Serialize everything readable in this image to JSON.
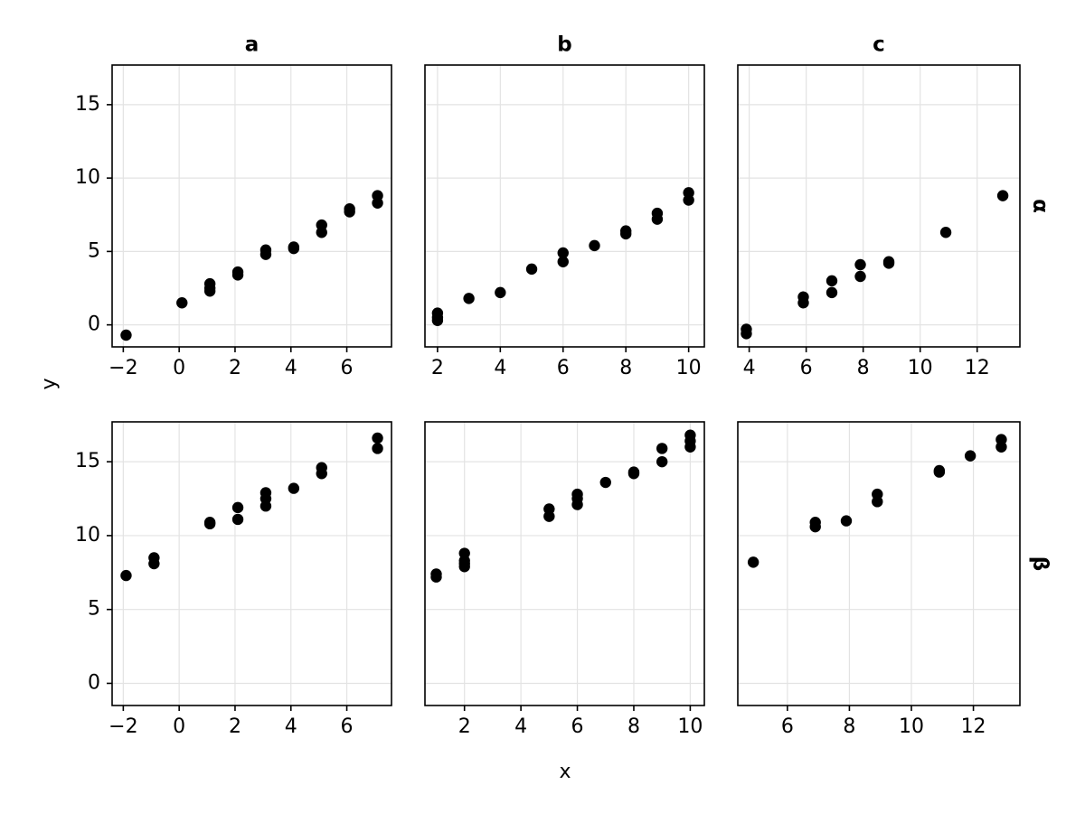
{
  "chart_data": {
    "type": "scatter",
    "xlabel": "x",
    "ylabel": "y",
    "column_titles": [
      "a",
      "b",
      "c"
    ],
    "row_labels": [
      "α",
      "β"
    ],
    "y_ticks": [
      0,
      5,
      10,
      15
    ],
    "ylim": [
      -1.5,
      17.7
    ],
    "grid": true,
    "marker_color": "#000000",
    "panels": [
      {
        "row": "α",
        "column": "a",
        "xlim": [
          -2.4,
          7.6
        ],
        "x_ticks": [
          -2,
          0,
          2,
          4,
          6
        ],
        "x_tick_labels": [
          "−2",
          "0",
          "2",
          "4",
          "6"
        ],
        "points": [
          [
            -1.9,
            -0.7
          ],
          [
            0.1,
            1.5
          ],
          [
            1.1,
            2.3
          ],
          [
            1.1,
            2.5
          ],
          [
            1.1,
            2.8
          ],
          [
            2.1,
            3.4
          ],
          [
            2.1,
            3.6
          ],
          [
            3.1,
            4.8
          ],
          [
            3.1,
            5.1
          ],
          [
            4.1,
            5.2
          ],
          [
            4.1,
            5.3
          ],
          [
            5.1,
            6.3
          ],
          [
            5.1,
            6.8
          ],
          [
            6.1,
            7.7
          ],
          [
            6.1,
            7.9
          ],
          [
            7.1,
            8.3
          ],
          [
            7.1,
            8.8
          ]
        ]
      },
      {
        "row": "α",
        "column": "b",
        "xlim": [
          1.6,
          10.5
        ],
        "x_ticks": [
          2,
          4,
          6,
          8,
          10
        ],
        "x_tick_labels": [
          "2",
          "4",
          "6",
          "8",
          "10"
        ],
        "points": [
          [
            2,
            0.3
          ],
          [
            2,
            0.5
          ],
          [
            2,
            0.8
          ],
          [
            3,
            1.8
          ],
          [
            4,
            2.2
          ],
          [
            5,
            3.8
          ],
          [
            6,
            4.3
          ],
          [
            6,
            4.9
          ],
          [
            7,
            5.4
          ],
          [
            8,
            6.2
          ],
          [
            8,
            6.4
          ],
          [
            9,
            7.2
          ],
          [
            9,
            7.6
          ],
          [
            10,
            8.5
          ],
          [
            10,
            9.0
          ]
        ]
      },
      {
        "row": "α",
        "column": "c",
        "xlim": [
          3.6,
          13.5
        ],
        "x_ticks": [
          4,
          6,
          8,
          10,
          12
        ],
        "x_tick_labels": [
          "4",
          "6",
          "8",
          "10",
          "12"
        ],
        "points": [
          [
            3.9,
            -0.6
          ],
          [
            3.9,
            -0.3
          ],
          [
            5.9,
            1.5
          ],
          [
            5.9,
            1.9
          ],
          [
            6.9,
            2.2
          ],
          [
            6.9,
            3.0
          ],
          [
            7.9,
            3.3
          ],
          [
            7.9,
            4.1
          ],
          [
            8.9,
            4.2
          ],
          [
            8.9,
            4.3
          ],
          [
            10.9,
            6.3
          ],
          [
            12.9,
            8.8
          ]
        ]
      },
      {
        "row": "β",
        "column": "a",
        "xlim": [
          -2.4,
          7.6
        ],
        "x_ticks": [
          -2,
          0,
          2,
          4,
          6
        ],
        "x_tick_labels": [
          "−2",
          "0",
          "2",
          "4",
          "6"
        ],
        "points": [
          [
            -1.9,
            7.3
          ],
          [
            -0.9,
            8.1
          ],
          [
            -0.9,
            8.5
          ],
          [
            1.1,
            10.8
          ],
          [
            1.1,
            10.9
          ],
          [
            2.1,
            11.1
          ],
          [
            2.1,
            11.9
          ],
          [
            3.1,
            12.0
          ],
          [
            3.1,
            12.5
          ],
          [
            3.1,
            12.9
          ],
          [
            4.1,
            13.2
          ],
          [
            5.1,
            14.2
          ],
          [
            5.1,
            14.6
          ],
          [
            7.1,
            15.9
          ],
          [
            7.1,
            16.6
          ]
        ]
      },
      {
        "row": "β",
        "column": "b",
        "xlim": [
          0.6,
          10.5
        ],
        "x_ticks": [
          2,
          4,
          6,
          8,
          10
        ],
        "x_tick_labels": [
          "2",
          "4",
          "6",
          "8",
          "10"
        ],
        "points": [
          [
            1,
            7.2
          ],
          [
            1,
            7.4
          ],
          [
            2,
            7.9
          ],
          [
            2,
            8.1
          ],
          [
            2,
            8.3
          ],
          [
            2,
            8.8
          ],
          [
            5,
            11.3
          ],
          [
            5,
            11.8
          ],
          [
            6,
            12.1
          ],
          [
            6,
            12.5
          ],
          [
            6,
            12.8
          ],
          [
            7,
            13.6
          ],
          [
            8,
            14.2
          ],
          [
            8,
            14.3
          ],
          [
            9,
            15.0
          ],
          [
            9,
            15.9
          ],
          [
            10,
            16.0
          ],
          [
            10,
            16.4
          ],
          [
            10,
            16.8
          ]
        ]
      },
      {
        "row": "β",
        "column": "c",
        "xlim": [
          4.4,
          13.5
        ],
        "x_ticks": [
          6,
          8,
          10,
          12
        ],
        "x_tick_labels": [
          "6",
          "8",
          "10",
          "12"
        ],
        "points": [
          [
            4.9,
            8.2
          ],
          [
            6.9,
            10.6
          ],
          [
            6.9,
            10.9
          ],
          [
            7.9,
            11.0
          ],
          [
            8.9,
            12.3
          ],
          [
            8.9,
            12.8
          ],
          [
            10.9,
            14.3
          ],
          [
            10.9,
            14.4
          ],
          [
            11.9,
            15.4
          ],
          [
            12.9,
            16.0
          ],
          [
            12.9,
            16.5
          ]
        ]
      }
    ]
  }
}
